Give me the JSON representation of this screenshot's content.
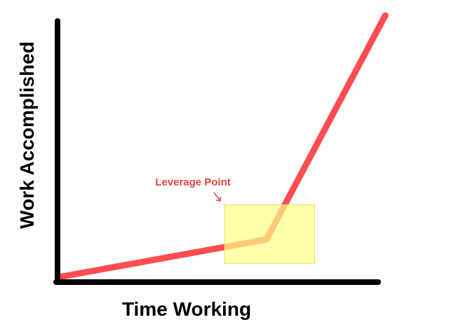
{
  "chart_data": {
    "type": "line",
    "xlabel": "Time Working",
    "ylabel": "Work Accomplished",
    "xlim": [
      0,
      10
    ],
    "ylim": [
      0,
      10
    ],
    "grid": false,
    "series": [
      {
        "color": "#ff4d52",
        "x": [
          0.1,
          6.5,
          10.2
        ],
        "y": [
          0.2,
          1.6,
          10.0
        ]
      }
    ],
    "highlight": {
      "x": [
        5.2,
        8.0
      ],
      "y": [
        0.7,
        2.9
      ],
      "color": "#ffff88"
    },
    "annotations": [
      {
        "text": "Leverage Point",
        "color": "#e8403f",
        "points_to": [
          5.2,
          3.0
        ]
      }
    ]
  }
}
